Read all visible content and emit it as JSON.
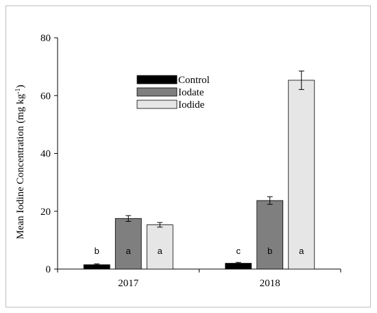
{
  "chart_data": {
    "type": "bar",
    "categories": [
      "2017",
      "2018"
    ],
    "series": [
      {
        "name": "Control",
        "color": "#000000",
        "values": [
          1.5,
          2.0
        ],
        "errors": [
          0.3,
          0.3
        ],
        "labels": [
          "b",
          "c"
        ]
      },
      {
        "name": "Iodate",
        "color": "#7f7f7f",
        "values": [
          17.5,
          23.7
        ],
        "errors": [
          1.0,
          1.3
        ],
        "labels": [
          "a",
          "b"
        ]
      },
      {
        "name": "Iodide",
        "color": "#e6e6e6",
        "values": [
          15.3,
          65.3
        ],
        "errors": [
          0.8,
          3.2
        ],
        "labels": [
          "a",
          "a"
        ]
      }
    ],
    "ylabel_main": "Mean Iodine Concentration (mg kg",
    "ylabel_sup": "-1",
    "ylabel_close": ")",
    "ylim": [
      0,
      80
    ],
    "yticks": [
      "0",
      "20",
      "40",
      "60",
      "80"
    ],
    "legend_position": "top-center",
    "grid": false
  }
}
